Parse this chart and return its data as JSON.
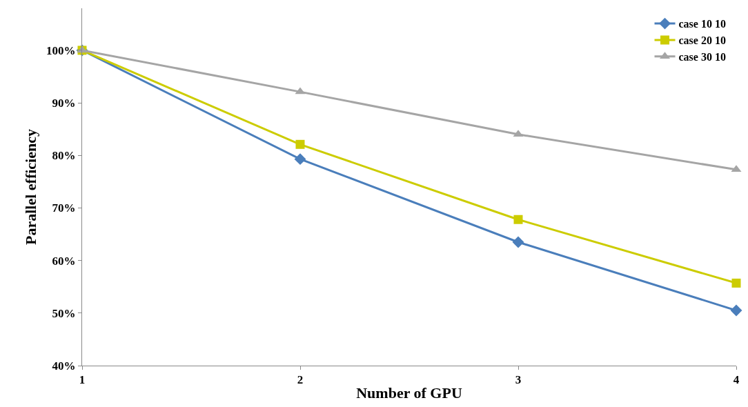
{
  "chart_data": {
    "type": "line",
    "xlabel": "Number of GPU",
    "ylabel": "Parallel efficiency",
    "x": [
      1,
      2,
      3,
      4
    ],
    "series": [
      {
        "name": "case 10 10",
        "color": "#4a7ebb",
        "marker": "diamond",
        "values": [
          100,
          79.3,
          63.5,
          50.5
        ]
      },
      {
        "name": "case 20 10",
        "color": "#cccc00",
        "marker": "square",
        "values": [
          100,
          82.1,
          67.8,
          55.7
        ]
      },
      {
        "name": "case 30 10",
        "color": "#a5a5a5",
        "marker": "triangle",
        "values": [
          100,
          92.1,
          84.0,
          77.3
        ]
      }
    ],
    "xlim": [
      1,
      4
    ],
    "xticks": [
      1,
      2,
      3,
      4
    ],
    "ylim": [
      40,
      108
    ],
    "yticks": [
      {
        "value": 40,
        "label": "40%"
      },
      {
        "value": 50,
        "label": "50%"
      },
      {
        "value": 60,
        "label": "60%"
      },
      {
        "value": 70,
        "label": "70%"
      },
      {
        "value": 80,
        "label": "80%"
      },
      {
        "value": 90,
        "label": "90%"
      },
      {
        "value": 100,
        "label": "100%"
      }
    ],
    "legend": "top right",
    "line_style": "solid"
  }
}
